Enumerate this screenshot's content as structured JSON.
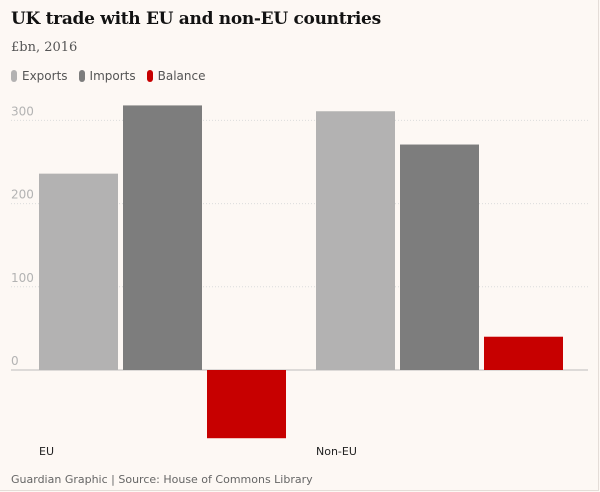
{
  "chart_data": {
    "type": "bar",
    "title": "UK trade with EU and non-EU countries",
    "subtitle": "£bn, 2016",
    "categories": [
      "EU",
      "Non-EU"
    ],
    "series": [
      {
        "name": "Exports",
        "color": "#b3b2b2",
        "values": [
          236,
          311
        ]
      },
      {
        "name": "Imports",
        "color": "#7d7d7d",
        "values": [
          318,
          271
        ]
      },
      {
        "name": "Balance",
        "color": "#c70000",
        "values": [
          -82,
          40
        ]
      }
    ],
    "yticks": [
      0,
      100,
      200,
      300
    ],
    "ytick_labels": [
      "0",
      "100",
      "200",
      "300"
    ],
    "ylim": [
      -85,
      320
    ],
    "xlabel": "",
    "ylabel": "",
    "legend_position": "top-left",
    "source": "Guardian Graphic | Source: House of Commons Library"
  }
}
